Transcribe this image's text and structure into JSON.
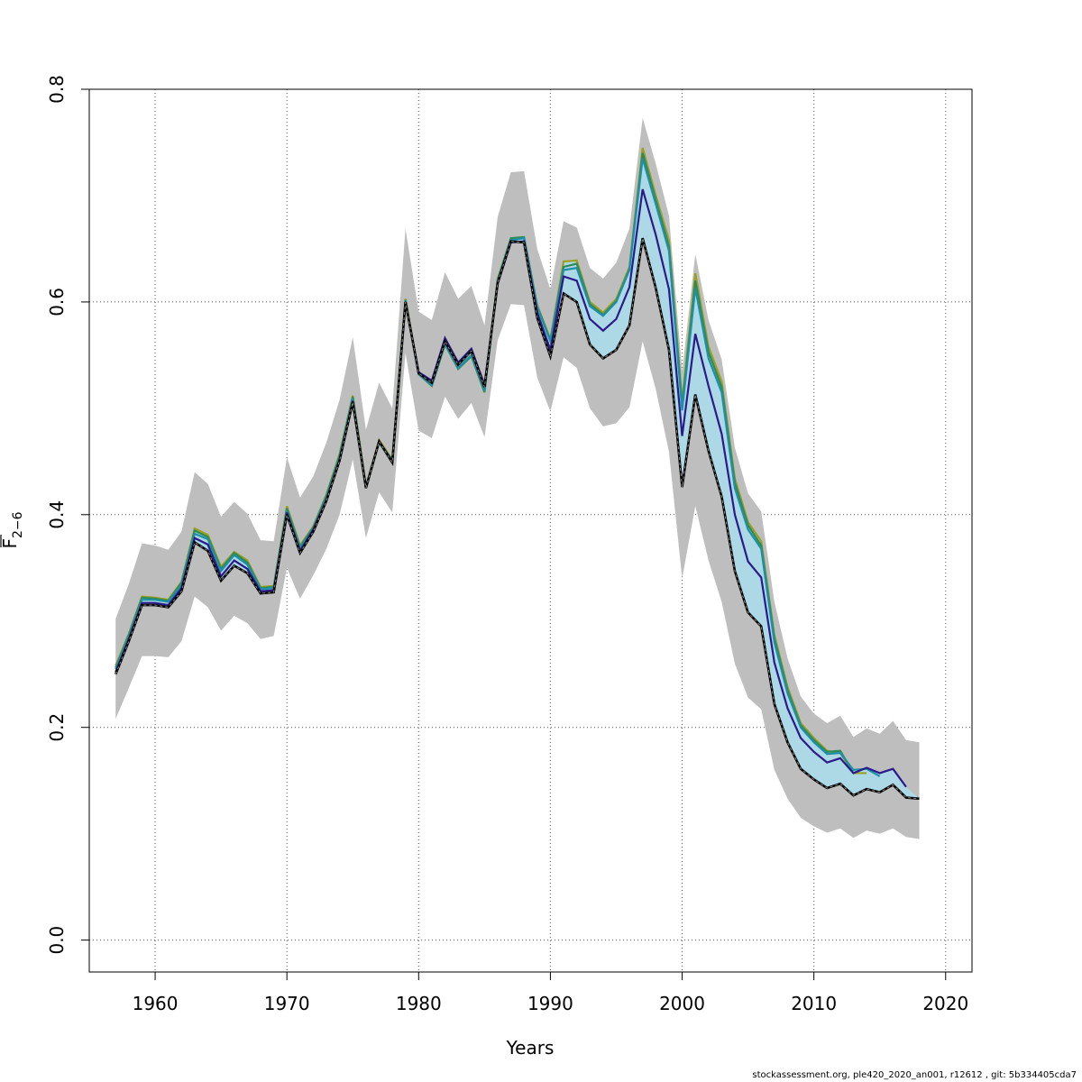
{
  "footer": "stockassessment.org, ple420_2020_an001, r12612 , git: 5b334405cda7",
  "chart_data": {
    "type": "line",
    "title": "",
    "xlabel": "Years",
    "ylabel": "F̅ 2−6",
    "ylabel_main": "F",
    "ylabel_sub": "2−6",
    "xlim": [
      1955,
      2022
    ],
    "ylim": [
      -0.03,
      0.8
    ],
    "xticks": [
      1960,
      1970,
      1980,
      1990,
      2000,
      2010,
      2020
    ],
    "yticks": [
      0.0,
      0.2,
      0.4,
      0.6,
      0.8
    ],
    "ytick_labels": [
      "0.0",
      "0.2",
      "0.4",
      "0.6",
      "0.8"
    ],
    "grid": true,
    "colors": {
      "ci_band": "#bebebe",
      "retro_band": "#add8e6",
      "base": "#000000",
      "peel_1": "#2a1a8a",
      "peel_2": "#1e8fa8",
      "peel_3": "#2e8b57",
      "peel_4": "#9aa020"
    },
    "ci_band": {
      "x": [
        1957,
        1958,
        1959,
        1960,
        1961,
        1962,
        1963,
        1964,
        1965,
        1966,
        1967,
        1968,
        1969,
        1970,
        1971,
        1972,
        1973,
        1974,
        1975,
        1976,
        1977,
        1978,
        1979,
        1980,
        1981,
        1982,
        1983,
        1984,
        1985,
        1986,
        1987,
        1988,
        1989,
        1990,
        1991,
        1992,
        1993,
        1994,
        1995,
        1996,
        1997,
        1998,
        1999,
        2000,
        2001,
        2002,
        2003,
        2004,
        2005,
        2006,
        2007,
        2008,
        2009,
        2010,
        2011,
        2012,
        2013,
        2014,
        2015,
        2016,
        2017,
        2018
      ],
      "upper": [
        0.302,
        0.335,
        0.373,
        0.371,
        0.367,
        0.384,
        0.44,
        0.429,
        0.398,
        0.412,
        0.401,
        0.376,
        0.375,
        0.454,
        0.416,
        0.436,
        0.468,
        0.508,
        0.567,
        0.48,
        0.524,
        0.5,
        0.669,
        0.591,
        0.583,
        0.628,
        0.603,
        0.615,
        0.578,
        0.68,
        0.722,
        0.723,
        0.65,
        0.612,
        0.676,
        0.67,
        0.632,
        0.622,
        0.637,
        0.669,
        0.773,
        0.73,
        0.681,
        0.535,
        0.645,
        0.583,
        0.546,
        0.463,
        0.42,
        0.403,
        0.318,
        0.265,
        0.229,
        0.213,
        0.204,
        0.211,
        0.191,
        0.199,
        0.194,
        0.206,
        0.188,
        0.186
      ],
      "lower": [
        0.208,
        0.237,
        0.267,
        0.267,
        0.266,
        0.281,
        0.323,
        0.313,
        0.291,
        0.305,
        0.298,
        0.283,
        0.286,
        0.35,
        0.321,
        0.343,
        0.368,
        0.4,
        0.452,
        0.378,
        0.421,
        0.402,
        0.552,
        0.479,
        0.472,
        0.511,
        0.49,
        0.505,
        0.473,
        0.564,
        0.598,
        0.597,
        0.529,
        0.497,
        0.548,
        0.538,
        0.5,
        0.483,
        0.486,
        0.501,
        0.563,
        0.518,
        0.459,
        0.34,
        0.408,
        0.357,
        0.318,
        0.26,
        0.228,
        0.217,
        0.16,
        0.133,
        0.115,
        0.107,
        0.101,
        0.105,
        0.096,
        0.103,
        0.1,
        0.105,
        0.097,
        0.095
      ]
    },
    "series": [
      {
        "id": "peel_4",
        "x": [
          1957,
          1958,
          1959,
          1960,
          1961,
          1962,
          1963,
          1964,
          1965,
          1966,
          1967,
          1968,
          1969,
          1970,
          1971,
          1972,
          1973,
          1974,
          1975,
          1976,
          1977,
          1978,
          1979,
          1980,
          1981,
          1982,
          1983,
          1984,
          1985,
          1986,
          1987,
          1988,
          1989,
          1990,
          1991,
          1992,
          1993,
          1994,
          1995,
          1996,
          1997,
          1998,
          1999,
          2000,
          2001,
          2002,
          2003,
          2004,
          2005,
          2006,
          2007,
          2008,
          2009,
          2010,
          2011,
          2012,
          2013,
          2014
        ],
        "values": [
          0.258,
          0.288,
          0.323,
          0.322,
          0.32,
          0.337,
          0.387,
          0.381,
          0.351,
          0.365,
          0.357,
          0.332,
          0.333,
          0.408,
          0.371,
          0.389,
          0.419,
          0.457,
          0.512,
          0.427,
          0.47,
          0.452,
          0.603,
          0.533,
          0.522,
          0.561,
          0.538,
          0.55,
          0.516,
          0.622,
          0.659,
          0.66,
          0.597,
          0.565,
          0.638,
          0.639,
          0.6,
          0.59,
          0.603,
          0.633,
          0.745,
          0.7,
          0.658,
          0.507,
          0.627,
          0.558,
          0.525,
          0.434,
          0.393,
          0.375,
          0.287,
          0.238,
          0.204,
          0.19,
          0.178,
          0.176,
          0.157,
          0.157
        ]
      },
      {
        "id": "peel_3",
        "x": [
          1957,
          1958,
          1959,
          1960,
          1961,
          1962,
          1963,
          1964,
          1965,
          1966,
          1967,
          1968,
          1969,
          1970,
          1971,
          1972,
          1973,
          1974,
          1975,
          1976,
          1977,
          1978,
          1979,
          1980,
          1981,
          1982,
          1983,
          1984,
          1985,
          1986,
          1987,
          1988,
          1989,
          1990,
          1991,
          1992,
          1993,
          1994,
          1995,
          1996,
          1997,
          1998,
          1999,
          2000,
          2001,
          2002,
          2003,
          2004,
          2005,
          2006,
          2007,
          2008,
          2009,
          2010,
          2011,
          2012,
          2013
        ],
        "values": [
          0.256,
          0.287,
          0.322,
          0.321,
          0.319,
          0.336,
          0.385,
          0.379,
          0.349,
          0.364,
          0.355,
          0.331,
          0.332,
          0.406,
          0.37,
          0.388,
          0.418,
          0.456,
          0.511,
          0.426,
          0.469,
          0.451,
          0.602,
          0.532,
          0.521,
          0.56,
          0.537,
          0.549,
          0.515,
          0.621,
          0.66,
          0.661,
          0.596,
          0.564,
          0.633,
          0.636,
          0.598,
          0.588,
          0.601,
          0.631,
          0.74,
          0.696,
          0.652,
          0.502,
          0.62,
          0.553,
          0.52,
          0.43,
          0.39,
          0.371,
          0.284,
          0.235,
          0.202,
          0.188,
          0.177,
          0.178,
          0.157
        ]
      },
      {
        "id": "peel_2",
        "x": [
          1957,
          1958,
          1959,
          1960,
          1961,
          1962,
          1963,
          1964,
          1965,
          1966,
          1967,
          1968,
          1969,
          1970,
          1971,
          1972,
          1973,
          1974,
          1975,
          1976,
          1977,
          1978,
          1979,
          1980,
          1981,
          1982,
          1983,
          1984,
          1985,
          1986,
          1987,
          1988,
          1989,
          1990,
          1991,
          1992,
          1993,
          1994,
          1995,
          1996,
          1997,
          1998,
          1999,
          2000,
          2001,
          2002,
          2003,
          2004,
          2005,
          2006,
          2007,
          2008,
          2009,
          2010,
          2011,
          2012,
          2013,
          2014,
          2015
        ],
        "values": [
          0.255,
          0.286,
          0.32,
          0.32,
          0.318,
          0.334,
          0.382,
          0.377,
          0.347,
          0.362,
          0.353,
          0.33,
          0.331,
          0.404,
          0.368,
          0.387,
          0.416,
          0.454,
          0.509,
          0.425,
          0.468,
          0.449,
          0.601,
          0.532,
          0.522,
          0.561,
          0.538,
          0.55,
          0.517,
          0.619,
          0.658,
          0.66,
          0.595,
          0.563,
          0.63,
          0.632,
          0.596,
          0.587,
          0.6,
          0.63,
          0.735,
          0.692,
          0.648,
          0.498,
          0.613,
          0.547,
          0.515,
          0.425,
          0.386,
          0.368,
          0.28,
          0.232,
          0.2,
          0.186,
          0.175,
          0.176,
          0.16,
          0.161,
          0.154
        ]
      },
      {
        "id": "peel_1",
        "x": [
          1957,
          1958,
          1959,
          1960,
          1961,
          1962,
          1963,
          1964,
          1965,
          1966,
          1967,
          1968,
          1969,
          1970,
          1971,
          1972,
          1973,
          1974,
          1975,
          1976,
          1977,
          1978,
          1979,
          1980,
          1981,
          1982,
          1983,
          1984,
          1985,
          1986,
          1987,
          1988,
          1989,
          1990,
          1991,
          1992,
          1993,
          1994,
          1995,
          1996,
          1997,
          1998,
          1999,
          2000,
          2001,
          2002,
          2003,
          2004,
          2005,
          2006,
          2007,
          2008,
          2009,
          2010,
          2011,
          2012,
          2013,
          2014,
          2015,
          2016,
          2017
        ],
        "values": [
          0.252,
          0.283,
          0.317,
          0.317,
          0.315,
          0.331,
          0.378,
          0.372,
          0.342,
          0.357,
          0.349,
          0.328,
          0.329,
          0.402,
          0.366,
          0.386,
          0.414,
          0.452,
          0.507,
          0.426,
          0.469,
          0.45,
          0.6,
          0.534,
          0.526,
          0.566,
          0.543,
          0.556,
          0.522,
          0.617,
          0.656,
          0.657,
          0.59,
          0.555,
          0.624,
          0.62,
          0.584,
          0.573,
          0.584,
          0.614,
          0.706,
          0.663,
          0.612,
          0.474,
          0.57,
          0.521,
          0.476,
          0.4,
          0.356,
          0.341,
          0.261,
          0.218,
          0.19,
          0.177,
          0.167,
          0.171,
          0.157,
          0.162,
          0.157,
          0.161,
          0.144
        ]
      },
      {
        "id": "base",
        "x": [
          1957,
          1958,
          1959,
          1960,
          1961,
          1962,
          1963,
          1964,
          1965,
          1966,
          1967,
          1968,
          1969,
          1970,
          1971,
          1972,
          1973,
          1974,
          1975,
          1976,
          1977,
          1978,
          1979,
          1980,
          1981,
          1982,
          1983,
          1984,
          1985,
          1986,
          1987,
          1988,
          1989,
          1990,
          1991,
          1992,
          1993,
          1994,
          1995,
          1996,
          1997,
          1998,
          1999,
          2000,
          2001,
          2002,
          2003,
          2004,
          2005,
          2006,
          2007,
          2008,
          2009,
          2010,
          2011,
          2012,
          2013,
          2014,
          2015,
          2016,
          2017,
          2018
        ],
        "values": [
          0.25,
          0.281,
          0.315,
          0.315,
          0.313,
          0.328,
          0.374,
          0.366,
          0.338,
          0.352,
          0.345,
          0.326,
          0.327,
          0.4,
          0.364,
          0.384,
          0.413,
          0.451,
          0.506,
          0.425,
          0.469,
          0.449,
          0.6,
          0.533,
          0.524,
          0.563,
          0.541,
          0.554,
          0.52,
          0.618,
          0.657,
          0.656,
          0.585,
          0.549,
          0.608,
          0.6,
          0.56,
          0.547,
          0.555,
          0.578,
          0.66,
          0.613,
          0.555,
          0.426,
          0.513,
          0.46,
          0.417,
          0.347,
          0.308,
          0.295,
          0.222,
          0.186,
          0.161,
          0.151,
          0.143,
          0.147,
          0.136,
          0.142,
          0.139,
          0.146,
          0.134,
          0.133
        ]
      }
    ]
  }
}
